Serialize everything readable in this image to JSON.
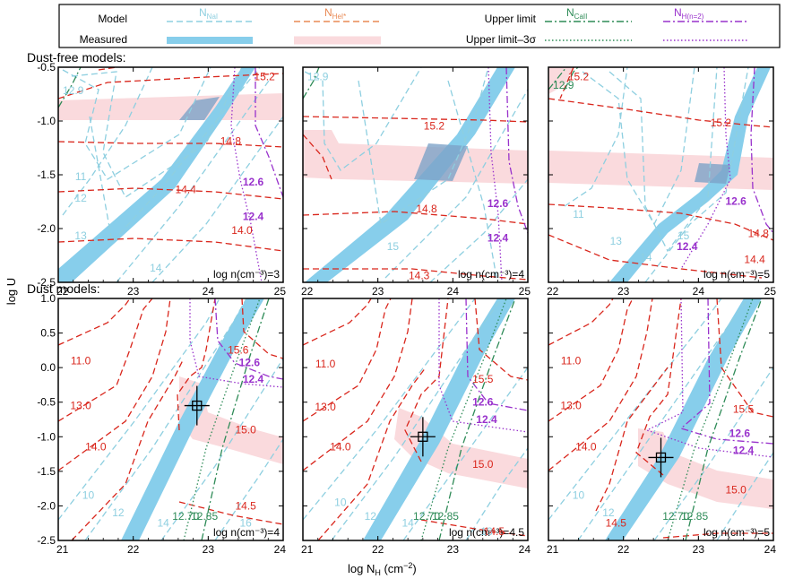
{
  "legend": {
    "row_model": "Model",
    "row_measured": "Measured",
    "row_upper": "Upper limit",
    "row_upper3": "Upper limit–3σ",
    "nai_main": "N",
    "nai_sub": "NaI",
    "hei_main": "N",
    "hei_sub": "HeI*",
    "caii_main": "N",
    "caii_sub": "CaII",
    "hn2_main": "N",
    "hn2_sub": "H(n=2)",
    "colors": {
      "nai": "#8ecfe0",
      "nai_band": "#87ceeb",
      "hei": "#d9261c",
      "hei_band": "#fadadd",
      "caii": "#2e8b57",
      "hn2": "#9932cc"
    }
  },
  "sections": {
    "top": "Dust-free models:",
    "bottom": "Dust models:"
  },
  "axes": {
    "ylabel": "log U",
    "xlabel_main": "log N",
    "xlabel_sub": "H",
    "xlabel_unit": " (cm",
    "xlabel_exp": "−2",
    "xlabel_close": ")"
  },
  "chart_data": [
    {
      "type": "contour",
      "id": "p1",
      "row": "top",
      "density": "log n(cm⁻³)=3",
      "xlim": [
        22,
        25
      ],
      "ylim": [
        -2.5,
        -0.5
      ],
      "xticks": [
        "22",
        "23",
        "24",
        "25"
      ],
      "yticks": [
        "-0.5",
        "-1.0",
        "-1.5",
        "-2.0",
        "-2.5"
      ],
      "contour_labels": [
        {
          "series": "hei",
          "text": "15.2",
          "x": 24.75,
          "y": -0.62
        },
        {
          "series": "hei",
          "text": "14.8",
          "x": 24.3,
          "y": -1.22
        },
        {
          "series": "hei",
          "text": "14.4",
          "x": 23.7,
          "y": -1.67
        },
        {
          "series": "hei",
          "text": "14.0",
          "x": 24.45,
          "y": -2.05
        },
        {
          "series": "nai",
          "text": "12.9",
          "x": 22.2,
          "y": -0.75
        },
        {
          "series": "nai",
          "text": "11",
          "x": 22.3,
          "y": -1.55
        },
        {
          "series": "nai",
          "text": "12",
          "x": 22.3,
          "y": -1.75
        },
        {
          "series": "nai",
          "text": "13",
          "x": 22.3,
          "y": -2.1
        },
        {
          "series": "nai",
          "text": "14",
          "x": 23.3,
          "y": -2.4
        },
        {
          "series": "hn2",
          "text": "12.6",
          "x": 24.6,
          "y": -1.6
        },
        {
          "series": "hn2",
          "text": "12.4",
          "x": 24.6,
          "y": -1.92
        }
      ]
    },
    {
      "type": "contour",
      "id": "p2",
      "row": "top",
      "density": "log n(cm⁻³)=4",
      "xlim": [
        22,
        25
      ],
      "ylim": [
        -2.5,
        -0.5
      ],
      "xticks": [
        "22",
        "23",
        "24",
        "25"
      ],
      "yticks": [
        "-0.5",
        "-1.0",
        "-1.5",
        "-2.0",
        "-2.5"
      ],
      "contour_labels": [
        {
          "series": "hei",
          "text": "15.2",
          "x": 23.75,
          "y": -1.08
        },
        {
          "series": "hei",
          "text": "14.8",
          "x": 23.65,
          "y": -1.85
        },
        {
          "series": "hei",
          "text": "14.3",
          "x": 23.55,
          "y": -2.47
        },
        {
          "series": "nai",
          "text": "12.9",
          "x": 22.2,
          "y": -0.62
        },
        {
          "series": "nai",
          "text": "15",
          "x": 23.2,
          "y": -2.2
        },
        {
          "series": "hn2",
          "text": "12.6",
          "x": 24.6,
          "y": -1.8
        },
        {
          "series": "hn2",
          "text": "12.4",
          "x": 24.6,
          "y": -2.12
        }
      ]
    },
    {
      "type": "contour",
      "id": "p3",
      "row": "top",
      "density": "log n(cm⁻³)=5",
      "xlim": [
        22,
        25
      ],
      "ylim": [
        -2.5,
        -0.5
      ],
      "xticks": [
        "22",
        "23",
        "24",
        "25"
      ],
      "yticks": [
        "-0.5",
        "-1.0",
        "-1.5",
        "-2.0",
        "-2.5"
      ],
      "contour_labels": [
        {
          "series": "hei",
          "text": "15.2",
          "x": 24.3,
          "y": -1.05
        },
        {
          "series": "hei",
          "text": "15.2",
          "x": 22.4,
          "y": -0.62
        },
        {
          "series": "hei",
          "text": "14.8",
          "x": 24.8,
          "y": -2.08
        },
        {
          "series": "hei",
          "text": "14.4",
          "x": 24.75,
          "y": -2.32
        },
        {
          "series": "caii",
          "text": "12.9",
          "x": 22.2,
          "y": -0.7
        },
        {
          "series": "nai",
          "text": "11",
          "x": 22.4,
          "y": -1.9
        },
        {
          "series": "nai",
          "text": "13",
          "x": 22.9,
          "y": -2.15
        },
        {
          "series": "nai",
          "text": "14",
          "x": 23.3,
          "y": -2.3
        },
        {
          "series": "nai",
          "text": "15",
          "x": 23.8,
          "y": -2.1
        },
        {
          "series": "hn2",
          "text": "12.6",
          "x": 24.5,
          "y": -1.78
        },
        {
          "series": "hn2",
          "text": "12.4",
          "x": 23.85,
          "y": -2.2
        }
      ]
    },
    {
      "type": "contour",
      "id": "p4",
      "row": "bottom",
      "density": "log n(cm⁻³)=4",
      "xlim": [
        21,
        24
      ],
      "ylim": [
        -2.5,
        1.0
      ],
      "xticks": [
        "21",
        "22",
        "23",
        "24"
      ],
      "yticks": [
        "1.0",
        "0.5",
        "0.0",
        "-0.5",
        "-1.0",
        "-1.5",
        "-2.0",
        "-2.5"
      ],
      "measured_point": {
        "x": 22.85,
        "y": -0.55
      },
      "contour_labels": [
        {
          "series": "hei",
          "text": "11.0",
          "x": 21.3,
          "y": 0.05
        },
        {
          "series": "hei",
          "text": "13.0",
          "x": 21.3,
          "y": -0.6
        },
        {
          "series": "hei",
          "text": "14.0",
          "x": 21.5,
          "y": -1.2
        },
        {
          "series": "hei",
          "text": "15.0",
          "x": 23.5,
          "y": -0.95
        },
        {
          "series": "hei",
          "text": "15.6",
          "x": 23.4,
          "y": 0.2
        },
        {
          "series": "hei",
          "text": "14.5",
          "x": 23.5,
          "y": -2.05
        },
        {
          "series": "nai",
          "text": "10",
          "x": 21.4,
          "y": -1.9
        },
        {
          "series": "nai",
          "text": "12",
          "x": 21.8,
          "y": -2.15
        },
        {
          "series": "nai",
          "text": "14",
          "x": 22.4,
          "y": -2.3
        },
        {
          "series": "nai",
          "text": "16",
          "x": 23.5,
          "y": -2.3
        },
        {
          "series": "caii",
          "text": "12.70",
          "x": 22.7,
          "y": -2.2
        },
        {
          "series": "caii",
          "text": "12.85",
          "x": 22.95,
          "y": -2.2
        },
        {
          "series": "hn2",
          "text": "12.6",
          "x": 23.55,
          "y": 0.02
        },
        {
          "series": "hn2",
          "text": "12.4",
          "x": 23.6,
          "y": -0.22
        }
      ]
    },
    {
      "type": "contour",
      "id": "p5",
      "row": "bottom",
      "density": "log n(cm⁻³)=4.5",
      "xlim": [
        21,
        24
      ],
      "ylim": [
        -2.5,
        1.0
      ],
      "xticks": [
        "21",
        "22",
        "23",
        "24"
      ],
      "yticks": [
        "1.0",
        "0.5",
        "0.0",
        "-0.5",
        "-1.0",
        "-1.5",
        "-2.0",
        "-2.5"
      ],
      "measured_point": {
        "x": 22.6,
        "y": -1.0
      },
      "contour_labels": [
        {
          "series": "hei",
          "text": "11.0",
          "x": 21.3,
          "y": 0.0
        },
        {
          "series": "hei",
          "text": "13.0",
          "x": 21.3,
          "y": -0.62
        },
        {
          "series": "hei",
          "text": "14.0",
          "x": 21.5,
          "y": -1.2
        },
        {
          "series": "hei",
          "text": "15.0",
          "x": 23.4,
          "y": -1.45
        },
        {
          "series": "hei",
          "text": "15.5",
          "x": 23.4,
          "y": -0.22
        },
        {
          "series": "hei",
          "text": "14.5",
          "x": 23.55,
          "y": -2.42
        },
        {
          "series": "nai",
          "text": "10",
          "x": 21.5,
          "y": -2.0
        },
        {
          "series": "nai",
          "text": "12",
          "x": 21.9,
          "y": -2.2
        },
        {
          "series": "nai",
          "text": "14",
          "x": 22.4,
          "y": -2.3
        },
        {
          "series": "nai",
          "text": "13",
          "x": 23.45,
          "y": -2.42
        },
        {
          "series": "caii",
          "text": "12.70",
          "x": 22.65,
          "y": -2.2
        },
        {
          "series": "caii",
          "text": "12.85",
          "x": 22.9,
          "y": -2.2
        },
        {
          "series": "hn2",
          "text": "12.6",
          "x": 23.4,
          "y": -0.55
        },
        {
          "series": "hn2",
          "text": "12.4",
          "x": 23.45,
          "y": -0.8
        }
      ]
    },
    {
      "type": "contour",
      "id": "p6",
      "row": "bottom",
      "density": "log n(cm⁻³)=5",
      "xlim": [
        21,
        24
      ],
      "ylim": [
        -2.5,
        1.0
      ],
      "xticks": [
        "21",
        "22",
        "23",
        "24"
      ],
      "yticks": [
        "1.0",
        "0.5",
        "0.0",
        "-0.5",
        "-1.0",
        "-1.5",
        "-2.0",
        "-2.5"
      ],
      "measured_point": {
        "x": 22.5,
        "y": -1.3
      },
      "contour_labels": [
        {
          "series": "hei",
          "text": "11.0",
          "x": 21.3,
          "y": 0.05
        },
        {
          "series": "hei",
          "text": "13.0",
          "x": 21.3,
          "y": -0.6
        },
        {
          "series": "hei",
          "text": "14.0",
          "x": 21.5,
          "y": -1.2
        },
        {
          "series": "hei",
          "text": "15.0",
          "x": 23.5,
          "y": -1.82
        },
        {
          "series": "hei",
          "text": "15.5",
          "x": 23.6,
          "y": -0.65
        },
        {
          "series": "hei",
          "text": "14.5",
          "x": 21.9,
          "y": -2.3
        },
        {
          "series": "nai",
          "text": "10",
          "x": 21.4,
          "y": -1.9
        },
        {
          "series": "nai",
          "text": "12",
          "x": 21.8,
          "y": -2.15
        },
        {
          "series": "caii",
          "text": "12.70",
          "x": 22.7,
          "y": -2.2
        },
        {
          "series": "caii",
          "text": "12.85",
          "x": 22.95,
          "y": -2.2
        },
        {
          "series": "hn2",
          "text": "12.6",
          "x": 23.55,
          "y": -1.0
        },
        {
          "series": "hn2",
          "text": "12.4",
          "x": 23.6,
          "y": -1.25
        }
      ]
    }
  ]
}
